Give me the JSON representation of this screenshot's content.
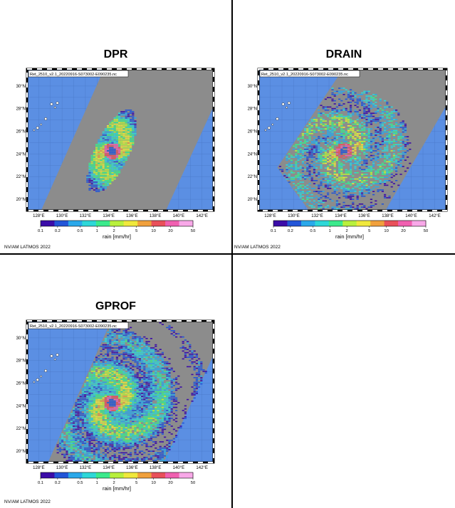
{
  "panels": [
    {
      "id": "dpr",
      "title": "DPR",
      "file_label": "Ret_2510_v2.1_20220916-S073002-E090235.nc",
      "rain_field": "dpr",
      "credit": "NV/AM LATMOS 2022"
    },
    {
      "id": "drain",
      "title": "DRAIN",
      "file_label": "Ret_2510_v2.1_20220916-S073002-E090235.nc",
      "rain_field": "drain",
      "credit": "NV/AM LATMOS 2022"
    },
    {
      "id": "gprof",
      "title": "GPROF",
      "file_label": "Ret_2510_v2.1_20220916-S073002-E090235.nc",
      "rain_field": "gprof",
      "credit": "NV/AM LATMOS 2022"
    }
  ],
  "map": {
    "lon_ticks": [
      "128°E",
      "130°E",
      "132°E",
      "134°E",
      "136°E",
      "138°E",
      "140°E",
      "142°E"
    ],
    "lat_ticks": [
      "20°N",
      "22°N",
      "24°N",
      "26°N",
      "28°N",
      "30°N"
    ],
    "lon_range": [
      127,
      143
    ],
    "lat_range": [
      19,
      31.5
    ],
    "storm_center": {
      "lon": 134.2,
      "lat": 24.3
    },
    "colors": {
      "ocean": "#5b8fe3",
      "swath": "#8c8c8c",
      "land": "#ffffff",
      "grid": "#4a78c8"
    }
  },
  "colorbar": {
    "label": "rain [mm/hr]",
    "ticks": [
      "0.1",
      "0.2",
      "0.5",
      "1",
      "2",
      "5",
      "10",
      "20",
      "50"
    ],
    "colors": [
      "#3b0ca8",
      "#2255d8",
      "#2aa8ea",
      "#2dd8d8",
      "#3bea8c",
      "#b8f03c",
      "#f0e83c",
      "#f0a03c",
      "#e8505a",
      "#f060b0",
      "#f8a8e8"
    ]
  }
}
